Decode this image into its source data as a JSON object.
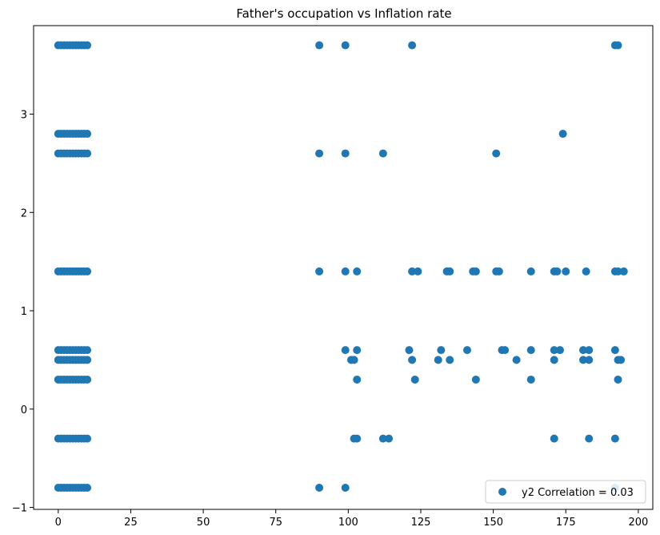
{
  "chart_data": {
    "type": "scatter",
    "title": "Father's occupation vs Inflation rate",
    "xlabel": "",
    "ylabel": "",
    "xlim": [
      -8.5,
      205
    ],
    "ylim": [
      -1.02,
      3.9
    ],
    "x_ticks": [
      0,
      25,
      50,
      75,
      100,
      125,
      150,
      175,
      200
    ],
    "y_ticks": [
      -1,
      0,
      1,
      2,
      3
    ],
    "grid": false,
    "legend_position": "bottom-right",
    "colors": {
      "marker": "#1f77b4",
      "axis": "#000000"
    },
    "series": [
      {
        "name": "y2 Correlation = 0.03",
        "x": [
          0,
          1,
          2,
          3,
          4,
          5,
          6,
          7,
          8,
          9,
          10,
          0,
          1,
          2,
          3,
          4,
          5,
          6,
          7,
          8,
          9,
          10,
          0,
          1,
          2,
          3,
          4,
          5,
          6,
          7,
          8,
          9,
          10,
          0,
          1,
          2,
          3,
          4,
          5,
          6,
          7,
          8,
          9,
          10,
          0,
          1,
          2,
          3,
          4,
          5,
          6,
          7,
          8,
          9,
          10,
          0,
          1,
          2,
          3,
          4,
          5,
          6,
          7,
          8,
          9,
          10,
          0,
          1,
          2,
          3,
          4,
          5,
          6,
          7,
          8,
          9,
          10,
          0,
          1,
          2,
          3,
          4,
          5,
          6,
          7,
          8,
          9,
          10,
          0,
          1,
          2,
          3,
          4,
          5,
          6,
          7,
          8,
          9,
          10,
          90,
          99,
          122,
          192,
          193,
          174,
          90,
          99,
          112,
          151,
          90,
          99,
          103,
          122,
          124,
          134,
          135,
          143,
          144,
          151,
          152,
          163,
          171,
          172,
          175,
          182,
          192,
          193,
          195,
          99,
          103,
          121,
          132,
          141,
          153,
          154,
          163,
          171,
          173,
          181,
          183,
          192,
          101,
          102,
          122,
          131,
          135,
          158,
          171,
          181,
          183,
          193,
          194,
          103,
          123,
          144,
          163,
          193,
          102,
          103,
          112,
          114,
          171,
          183,
          192,
          90,
          99,
          192
        ],
        "y": [
          3.7,
          3.7,
          3.7,
          3.7,
          3.7,
          3.7,
          3.7,
          3.7,
          3.7,
          3.7,
          3.7,
          2.8,
          2.8,
          2.8,
          2.8,
          2.8,
          2.8,
          2.8,
          2.8,
          2.8,
          2.8,
          2.8,
          2.6,
          2.6,
          2.6,
          2.6,
          2.6,
          2.6,
          2.6,
          2.6,
          2.6,
          2.6,
          2.6,
          1.4,
          1.4,
          1.4,
          1.4,
          1.4,
          1.4,
          1.4,
          1.4,
          1.4,
          1.4,
          1.4,
          0.6,
          0.6,
          0.6,
          0.6,
          0.6,
          0.6,
          0.6,
          0.6,
          0.6,
          0.6,
          0.6,
          0.5,
          0.5,
          0.5,
          0.5,
          0.5,
          0.5,
          0.5,
          0.5,
          0.5,
          0.5,
          0.5,
          0.3,
          0.3,
          0.3,
          0.3,
          0.3,
          0.3,
          0.3,
          0.3,
          0.3,
          0.3,
          0.3,
          -0.3,
          -0.3,
          -0.3,
          -0.3,
          -0.3,
          -0.3,
          -0.3,
          -0.3,
          -0.3,
          -0.3,
          -0.3,
          -0.8,
          -0.8,
          -0.8,
          -0.8,
          -0.8,
          -0.8,
          -0.8,
          -0.8,
          -0.8,
          -0.8,
          -0.8,
          3.7,
          3.7,
          3.7,
          3.7,
          3.7,
          2.8,
          2.6,
          2.6,
          2.6,
          2.6,
          1.4,
          1.4,
          1.4,
          1.4,
          1.4,
          1.4,
          1.4,
          1.4,
          1.4,
          1.4,
          1.4,
          1.4,
          1.4,
          1.4,
          1.4,
          1.4,
          1.4,
          1.4,
          1.4,
          0.6,
          0.6,
          0.6,
          0.6,
          0.6,
          0.6,
          0.6,
          0.6,
          0.6,
          0.6,
          0.6,
          0.6,
          0.6,
          0.5,
          0.5,
          0.5,
          0.5,
          0.5,
          0.5,
          0.5,
          0.5,
          0.5,
          0.5,
          0.5,
          0.3,
          0.3,
          0.3,
          0.3,
          0.3,
          -0.3,
          -0.3,
          -0.3,
          -0.3,
          -0.3,
          -0.3,
          -0.3,
          -0.8,
          -0.8,
          -0.8
        ]
      }
    ]
  }
}
